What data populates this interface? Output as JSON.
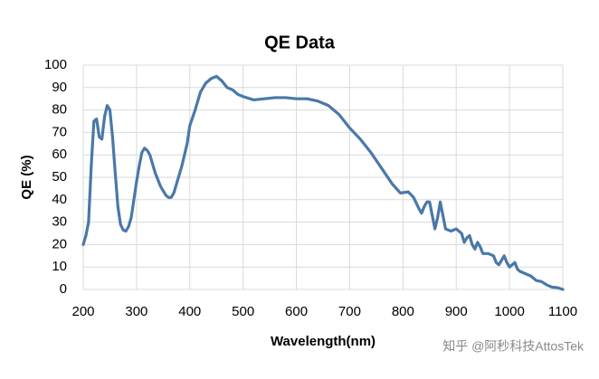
{
  "chart_data": {
    "type": "line",
    "title": "QE Data",
    "xlabel": "Wavelength(nm)",
    "ylabel": "QE (%)",
    "watermark": "知乎 @阿秒科技AttosTek",
    "x": [
      200,
      205,
      210,
      215,
      220,
      225,
      230,
      235,
      240,
      245,
      250,
      255,
      260,
      265,
      270,
      275,
      280,
      285,
      290,
      295,
      300,
      305,
      310,
      315,
      320,
      325,
      330,
      335,
      340,
      345,
      350,
      355,
      360,
      365,
      370,
      375,
      380,
      385,
      390,
      395,
      400,
      410,
      420,
      430,
      440,
      450,
      460,
      470,
      480,
      490,
      500,
      520,
      540,
      560,
      580,
      600,
      620,
      640,
      660,
      680,
      700,
      720,
      740,
      760,
      780,
      795,
      810,
      820,
      830,
      835,
      840,
      845,
      850,
      855,
      860,
      865,
      870,
      875,
      880,
      890,
      900,
      910,
      915,
      920,
      925,
      930,
      935,
      940,
      945,
      950,
      960,
      970,
      975,
      980,
      985,
      990,
      995,
      1000,
      1005,
      1010,
      1015,
      1020,
      1030,
      1040,
      1050,
      1060,
      1070,
      1080,
      1090,
      1100
    ],
    "series": [
      {
        "name": "QE",
        "color": "#4a78a8",
        "values": [
          20,
          24,
          30,
          55,
          75,
          76,
          68,
          67,
          77,
          82,
          80,
          68,
          52,
          37,
          29,
          26.5,
          26,
          28,
          32,
          40,
          48,
          55,
          61,
          63,
          62,
          60,
          56,
          52,
          49,
          46,
          44,
          42,
          41,
          41,
          43,
          47,
          51,
          55,
          60,
          65,
          73,
          80,
          88,
          92,
          94,
          95,
          93,
          90,
          89,
          87,
          86,
          84.5,
          85,
          85.5,
          85.5,
          85,
          85,
          84,
          82,
          78,
          72,
          67,
          61,
          54,
          47,
          43,
          43.5,
          41,
          36,
          34,
          37,
          39,
          39,
          33,
          27,
          32,
          39,
          33,
          27,
          26,
          27,
          25,
          21,
          23,
          24,
          20,
          18,
          21,
          19,
          16,
          16,
          15,
          12,
          11,
          13,
          15,
          12,
          10,
          11,
          12,
          9,
          8,
          7,
          6,
          4,
          3.5,
          2,
          1,
          0.8,
          0
        ]
      }
    ],
    "xlim": [
      200,
      1100
    ],
    "xticks": [
      200,
      300,
      400,
      500,
      600,
      700,
      800,
      900,
      1000,
      1100
    ],
    "ylim": [
      0,
      100
    ],
    "yticks": [
      0,
      10,
      20,
      30,
      40,
      50,
      60,
      70,
      80,
      90,
      100
    ],
    "grid": true
  }
}
